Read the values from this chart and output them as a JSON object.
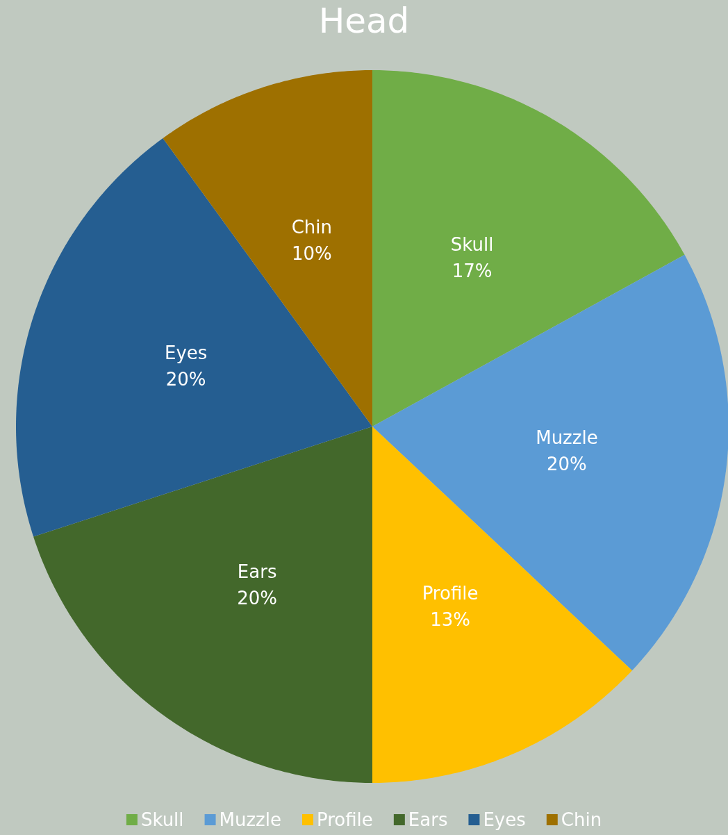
{
  "chart_data": {
    "type": "pie",
    "title": "Head",
    "categories": [
      "Skull",
      "Muzzle",
      "Profile",
      "Ears",
      "Eyes",
      "Chin"
    ],
    "values": [
      17,
      20,
      13,
      20,
      20,
      10
    ],
    "value_labels": [
      "17%",
      "20%",
      "13%",
      "20%",
      "20%",
      "10%"
    ],
    "colors": [
      "#70ad47",
      "#5b9bd5",
      "#ffc000",
      "#43682b",
      "#255e91",
      "#9e7000"
    ],
    "legend": "bottom"
  }
}
